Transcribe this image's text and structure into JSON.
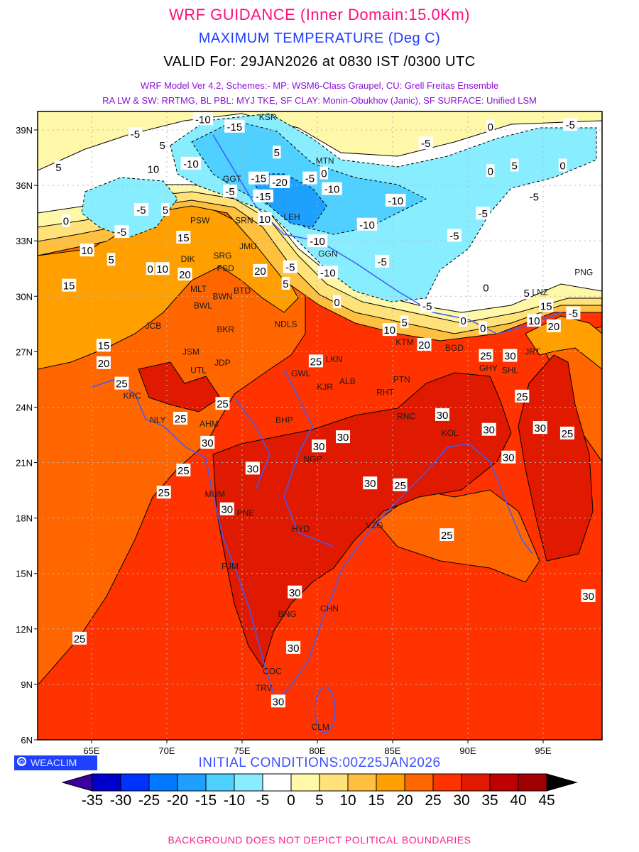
{
  "header": {
    "title": "WRF GUIDANCE (Inner Domain:15.0Km)",
    "variable": "MAXIMUM TEMPERATURE (Deg C)",
    "valid": "VALID For: 29JAN2026 at 0830 IST /0300 UTC",
    "model_line1": "WRF Model Ver 4.2, Schemes:- MP: WSM6-Class Graupel, CU: Grell Freitas Ensemble",
    "model_line2": "RA LW & SW: RRTMG, BL PBL: MYJ TKE, SF CLAY: Monin-Obukhov (Janic), SF SURFACE: Unified LSM"
  },
  "branding": {
    "copyright_symbol": "©",
    "name": "WEACLIM"
  },
  "initial_conditions": "INITIAL CONDITIONS:00Z25JAN2026",
  "footer": "BACKGROUND DOES NOT DEPICT POLITICAL BOUNDARIES",
  "map": {
    "lon_range": [
      61.4,
      98.5
    ],
    "lat_range": [
      6,
      40
    ],
    "lon_ticks": [
      {
        "v": 65,
        "label": "65E"
      },
      {
        "v": 70,
        "label": "70E"
      },
      {
        "v": 75,
        "label": "75E"
      },
      {
        "v": 80,
        "label": "80E"
      },
      {
        "v": 85,
        "label": "85E"
      },
      {
        "v": 90,
        "label": "90E"
      },
      {
        "v": 95,
        "label": "95E"
      }
    ],
    "lat_ticks": [
      {
        "v": 6,
        "label": "6N"
      },
      {
        "v": 9,
        "label": "9N"
      },
      {
        "v": 12,
        "label": "12N"
      },
      {
        "v": 15,
        "label": "15N"
      },
      {
        "v": 18,
        "label": "18N"
      },
      {
        "v": 21,
        "label": "21N"
      },
      {
        "v": 24,
        "label": "24N"
      },
      {
        "v": 27,
        "label": "27N"
      },
      {
        "v": 30,
        "label": "30N"
      },
      {
        "v": 33,
        "label": "33N"
      },
      {
        "v": 36,
        "label": "36N"
      },
      {
        "v": 39,
        "label": "39N"
      }
    ],
    "cities": [
      {
        "name": "KSR",
        "lon": 76.7,
        "lat": 39.7
      },
      {
        "name": "MTN",
        "lon": 80.5,
        "lat": 37.2
      },
      {
        "name": "GGT",
        "lon": 75.0,
        "lat": 36.2
      },
      {
        "name": "LEH",
        "lon": 78.3,
        "lat": 34.3
      },
      {
        "name": "PSW",
        "lon": 72.2,
        "lat": 34.1
      },
      {
        "name": "SRN",
        "lon": 75.7,
        "lat": 34.1
      },
      {
        "name": "JMU",
        "lon": 75.4,
        "lat": 32.7
      },
      {
        "name": "GGN",
        "lon": 80.7,
        "lat": 32.3
      },
      {
        "name": "DIK",
        "lon": 71.4,
        "lat": 32.0
      },
      {
        "name": "SRG",
        "lon": 73.7,
        "lat": 32.2
      },
      {
        "name": "FSD",
        "lon": 73.9,
        "lat": 31.5
      },
      {
        "name": "MLT",
        "lon": 72.1,
        "lat": 30.4
      },
      {
        "name": "BWN",
        "lon": 73.7,
        "lat": 30.0
      },
      {
        "name": "BTD",
        "lon": 75.0,
        "lat": 30.3
      },
      {
        "name": "BWL",
        "lon": 72.4,
        "lat": 29.5
      },
      {
        "name": "NDLS",
        "lon": 77.9,
        "lat": 28.5
      },
      {
        "name": "JCB",
        "lon": 69.1,
        "lat": 28.4
      },
      {
        "name": "BKR",
        "lon": 73.9,
        "lat": 28.2
      },
      {
        "name": "JSM",
        "lon": 71.6,
        "lat": 27.0
      },
      {
        "name": "JDP",
        "lon": 73.7,
        "lat": 26.4
      },
      {
        "name": "UTL",
        "lon": 72.1,
        "lat": 26.0
      },
      {
        "name": "GWL",
        "lon": 78.9,
        "lat": 26.4
      },
      {
        "name": "LKN",
        "lon": 81.1,
        "lat": 26.6
      },
      {
        "name": "ALB",
        "lon": 82.0,
        "lat": 25.4
      },
      {
        "name": "KJR",
        "lon": 80.5,
        "lat": 25.1
      },
      {
        "name": "PTN",
        "lon": 85.6,
        "lat": 25.5
      },
      {
        "name": "RHT",
        "lon": 84.5,
        "lat": 24.8
      },
      {
        "name": "KTM",
        "lon": 85.8,
        "lat": 27.6
      },
      {
        "name": "BGD",
        "lon": 89.1,
        "lat": 27.2
      },
      {
        "name": "GHY",
        "lon": 92.4,
        "lat": 26.5
      },
      {
        "name": "SHL",
        "lon": 92.8,
        "lat": 26.0
      },
      {
        "name": "JRT",
        "lon": 94.3,
        "lat": 27.0
      },
      {
        "name": "PNG",
        "lon": 97.7,
        "lat": 31.3
      },
      {
        "name": "LNZ",
        "lon": 94.8,
        "lat": 30.0
      },
      {
        "name": "KRC",
        "lon": 67.7,
        "lat": 24.7
      },
      {
        "name": "NLY",
        "lon": 69.4,
        "lat": 23.3
      },
      {
        "name": "AHM",
        "lon": 72.8,
        "lat": 23.1
      },
      {
        "name": "BHP",
        "lon": 77.8,
        "lat": 23.3
      },
      {
        "name": "NGP",
        "lon": 79.7,
        "lat": 21.2
      },
      {
        "name": "RNC",
        "lon": 85.9,
        "lat": 23.5
      },
      {
        "name": "KOL",
        "lon": 88.8,
        "lat": 22.6
      },
      {
        "name": "MUM",
        "lon": 73.2,
        "lat": 19.3
      },
      {
        "name": "PNE",
        "lon": 74.1,
        "lat": 18.5
      },
      {
        "name": "HYD",
        "lon": 78.9,
        "lat": 17.4
      },
      {
        "name": "VZG",
        "lon": 83.8,
        "lat": 17.6
      },
      {
        "name": "PJM",
        "lon": 74.2,
        "lat": 15.4
      },
      {
        "name": "BNG",
        "lon": 78.0,
        "lat": 12.8
      },
      {
        "name": "CHN",
        "lon": 80.8,
        "lat": 13.1
      },
      {
        "name": "COC",
        "lon": 77.0,
        "lat": 9.7
      },
      {
        "name": "TRV",
        "lon": 77.2,
        "lat": 8.5
      },
      {
        "name": "CLM",
        "lon": 80.2,
        "lat": 6.7
      }
    ],
    "contour_labels": [
      {
        "v": "-10",
        "lon": 72.4,
        "lat": 39.6
      },
      {
        "v": "-15",
        "lon": 74.5,
        "lat": 39.2
      },
      {
        "v": "-5",
        "lon": 67.9,
        "lat": 38.8
      },
      {
        "v": "5",
        "lon": 69.7,
        "lat": 38.2
      },
      {
        "v": "5",
        "lon": 77.3,
        "lat": 37.8
      },
      {
        "v": "10",
        "lon": 69.1,
        "lat": 36.9
      },
      {
        "v": "-10",
        "lon": 71.6,
        "lat": 37.2
      },
      {
        "v": "5",
        "lon": 62.8,
        "lat": 37.0
      },
      {
        "v": "0",
        "lon": 80.3,
        "lat": 36.6
      },
      {
        "v": "-15",
        "lon": 76.1,
        "lat": 36.4
      },
      {
        "v": "-20",
        "lon": 77.5,
        "lat": 36.2
      },
      {
        "v": "-5",
        "lon": 79.5,
        "lat": 36.4
      },
      {
        "v": "-10",
        "lon": 80.4,
        "lat": 35.9
      },
      {
        "v": "-5",
        "lon": 74.2,
        "lat": 35.7
      },
      {
        "v": "-15",
        "lon": 76.4,
        "lat": 35.5
      },
      {
        "v": "-10",
        "lon": 85.2,
        "lat": 35.2
      },
      {
        "v": "-5",
        "lon": 91.0,
        "lat": 34.5
      },
      {
        "v": "-10",
        "lon": 83.3,
        "lat": 33.9
      },
      {
        "v": "-5",
        "lon": 89.1,
        "lat": 33.3
      },
      {
        "v": "-5",
        "lon": 68.3,
        "lat": 34.7
      },
      {
        "v": "5",
        "lon": 69.9,
        "lat": 34.7
      },
      {
        "v": "-5",
        "lon": 67.0,
        "lat": 33.5
      },
      {
        "v": "10",
        "lon": 76.5,
        "lat": 34.2
      },
      {
        "v": "15",
        "lon": 71.1,
        "lat": 33.2
      },
      {
        "v": "-10",
        "lon": 80.0,
        "lat": 33.0
      },
      {
        "v": "10",
        "lon": 64.7,
        "lat": 32.5
      },
      {
        "v": "5",
        "lon": 66.3,
        "lat": 32.0
      },
      {
        "v": "0",
        "lon": 68.9,
        "lat": 31.5
      },
      {
        "v": "10",
        "lon": 69.7,
        "lat": 31.5
      },
      {
        "v": "20",
        "lon": 71.2,
        "lat": 31.2
      },
      {
        "v": "20",
        "lon": 76.2,
        "lat": 31.4
      },
      {
        "v": "-5",
        "lon": 78.2,
        "lat": 31.6
      },
      {
        "v": "-10",
        "lon": 80.7,
        "lat": 31.3
      },
      {
        "v": "-5",
        "lon": 84.3,
        "lat": 31.9
      },
      {
        "v": "15",
        "lon": 63.5,
        "lat": 30.6
      },
      {
        "v": "5",
        "lon": 77.9,
        "lat": 30.7
      },
      {
        "v": "0",
        "lon": 81.3,
        "lat": 29.7
      },
      {
        "v": "0",
        "lon": 91.2,
        "lat": 30.5
      },
      {
        "v": "-5",
        "lon": 87.3,
        "lat": 29.5
      },
      {
        "v": "0",
        "lon": 89.7,
        "lat": 28.7
      },
      {
        "v": "0",
        "lon": 91.0,
        "lat": 28.3
      },
      {
        "v": "5",
        "lon": 93.9,
        "lat": 30.2
      },
      {
        "v": "15",
        "lon": 95.2,
        "lat": 29.5
      },
      {
        "v": "-5",
        "lon": 97.0,
        "lat": 29.1
      },
      {
        "v": "10",
        "lon": 94.4,
        "lat": 28.7
      },
      {
        "v": "20",
        "lon": 95.7,
        "lat": 28.4
      },
      {
        "v": "10",
        "lon": 84.8,
        "lat": 28.2
      },
      {
        "v": "5",
        "lon": 85.6,
        "lat": 28.5
      },
      {
        "v": "20",
        "lon": 87.1,
        "lat": 27.4
      },
      {
        "v": "15",
        "lon": 65.8,
        "lat": 27.2
      },
      {
        "v": "20",
        "lon": 65.8,
        "lat": 26.6
      },
      {
        "v": "25",
        "lon": 79.9,
        "lat": 26.5
      },
      {
        "v": "25",
        "lon": 91.2,
        "lat": 26.8
      },
      {
        "v": "30",
        "lon": 92.8,
        "lat": 26.8
      },
      {
        "v": "25",
        "lon": 67.0,
        "lat": 25.3
      },
      {
        "v": "25",
        "lon": 73.7,
        "lat": 24.2
      },
      {
        "v": "25",
        "lon": 70.9,
        "lat": 23.4
      },
      {
        "v": "30",
        "lon": 72.7,
        "lat": 22.1
      },
      {
        "v": "25",
        "lon": 71.1,
        "lat": 20.6
      },
      {
        "v": "25",
        "lon": 69.8,
        "lat": 19.4
      },
      {
        "v": "30",
        "lon": 75.7,
        "lat": 20.7
      },
      {
        "v": "30",
        "lon": 80.1,
        "lat": 21.9
      },
      {
        "v": "30",
        "lon": 81.7,
        "lat": 22.4
      },
      {
        "v": "30",
        "lon": 83.5,
        "lat": 19.9
      },
      {
        "v": "25",
        "lon": 85.5,
        "lat": 19.8
      },
      {
        "v": "30",
        "lon": 88.3,
        "lat": 23.6
      },
      {
        "v": "30",
        "lon": 91.4,
        "lat": 22.8
      },
      {
        "v": "25",
        "lon": 93.6,
        "lat": 24.6
      },
      {
        "v": "30",
        "lon": 94.8,
        "lat": 22.9
      },
      {
        "v": "25",
        "lon": 96.6,
        "lat": 22.6
      },
      {
        "v": "30",
        "lon": 92.7,
        "lat": 21.3
      },
      {
        "v": "25",
        "lon": 88.6,
        "lat": 17.1
      },
      {
        "v": "30",
        "lon": 74.0,
        "lat": 18.5
      },
      {
        "v": "30",
        "lon": 78.5,
        "lat": 14.0
      },
      {
        "v": "30",
        "lon": 78.4,
        "lat": 11.0
      },
      {
        "v": "30",
        "lon": 77.4,
        "lat": 8.1
      },
      {
        "v": "25",
        "lon": 64.2,
        "lat": 11.5
      },
      {
        "v": "30",
        "lon": 98.0,
        "lat": 13.8
      },
      {
        "v": "0",
        "lon": 91.5,
        "lat": 39.2
      },
      {
        "v": "-5",
        "lon": 96.8,
        "lat": 39.3
      },
      {
        "v": "-5",
        "lon": 87.2,
        "lat": 38.3
      },
      {
        "v": "0",
        "lon": 91.5,
        "lat": 36.8
      },
      {
        "v": "5",
        "lon": 93.1,
        "lat": 37.1
      },
      {
        "v": "0",
        "lon": 96.3,
        "lat": 37.1
      },
      {
        "v": "-5",
        "lon": 94.4,
        "lat": 35.4
      },
      {
        "v": "0",
        "lon": 63.3,
        "lat": 34.1
      }
    ]
  },
  "colorbar": {
    "levels": [
      "-35",
      "-30",
      "-25",
      "-20",
      "-15",
      "-10",
      "-5",
      "0",
      "5",
      "10",
      "15",
      "20",
      "25",
      "30",
      "35",
      "40",
      "45"
    ],
    "colors": [
      "#0000cd",
      "#0032ff",
      "#0078ff",
      "#1ea0ff",
      "#50d0ff",
      "#88eeff",
      "#ffffff",
      "#fff8a8",
      "#ffe27a",
      "#ffc040",
      "#ffa000",
      "#ff6600",
      "#ff3300",
      "#e01a00",
      "#c00000",
      "#a00000"
    ],
    "under_color": "#3a00a0",
    "over_color": "#000000"
  }
}
